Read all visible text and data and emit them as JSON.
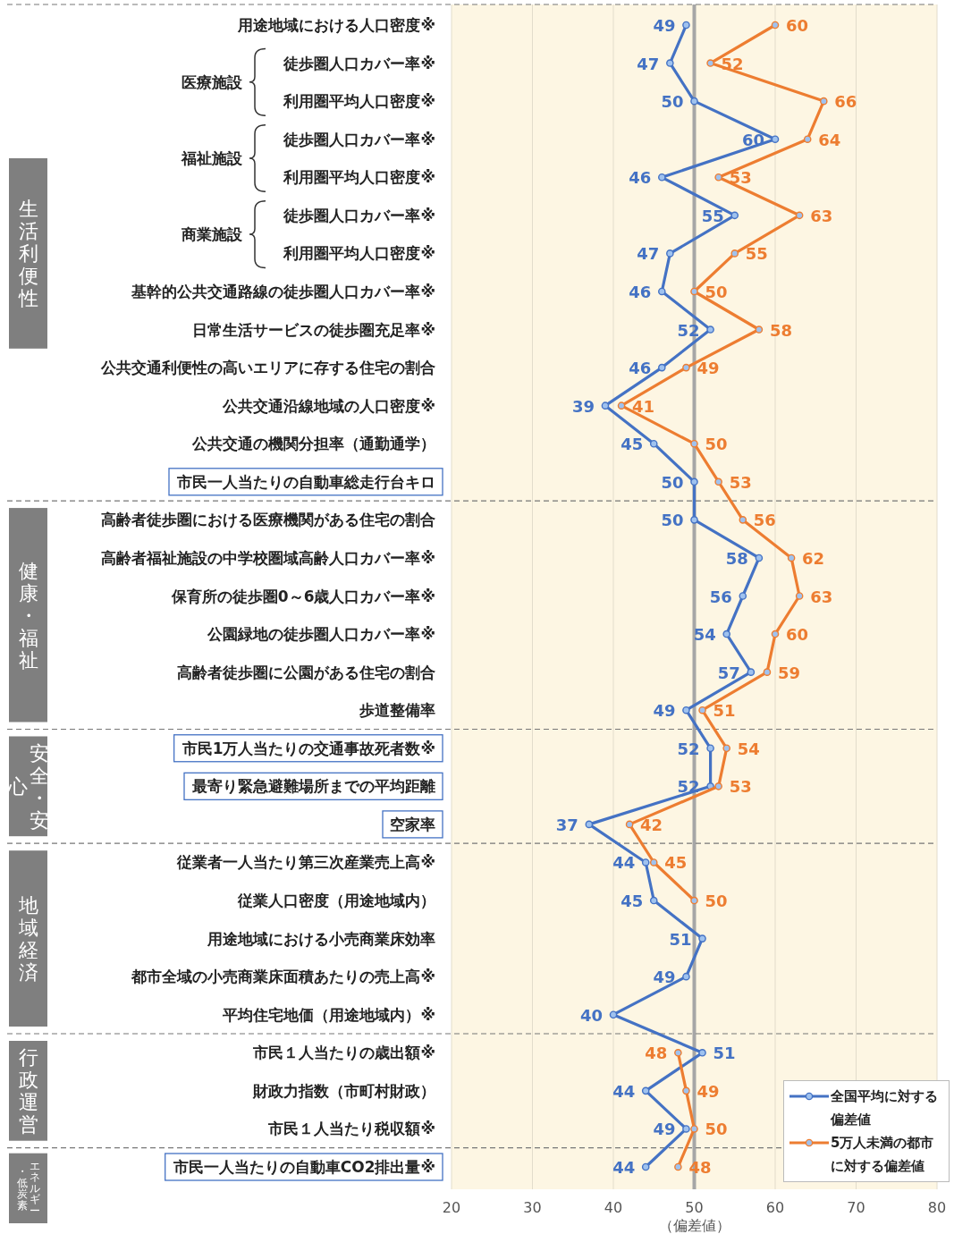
{
  "chart_data": {
    "type": "line",
    "orientation": "horizontal",
    "categories": [
      "用途地域における人口密度※",
      "徒歩圏人口カバー率※",
      "利用圏平均人口密度※",
      "徒歩圏人口カバー率※",
      "利用圏平均人口密度※",
      "徒歩圏人口カバー率※",
      "利用圏平均人口密度※",
      "基幹的公共交通路線の徒歩圏人口カバー率※",
      "日常生活サービスの徒歩圏充足率※",
      "公共交通利便性の高いエリアに存する住宅の割合",
      "公共交通沿線地域の人口密度※",
      "公共交通の機関分担率（通勤通学）",
      "市民一人当たりの自動車総走行台キロ",
      "高齢者徒歩圏における医療機関がある住宅の割合",
      "高齢者福祉施設の中学校圏域高齢人口カバー率※",
      "保育所の徒歩圏0～6歳人口カバー率※",
      "公園緑地の徒歩圏人口カバー率※",
      "高齢者徒歩圏に公園がある住宅の割合",
      "歩道整備率",
      "市民1万人当たりの交通事故死者数※",
      "最寄り緊急避難場所までの平均距離",
      "空家率",
      "従業者一人当たり第三次産業売上高※",
      "従業人口密度（用途地域内）",
      "用途地域における小売商業床効率",
      "都市全域の小売商業床面積あたりの売上高※",
      "平均住宅地価（用途地域内）※",
      "市民１人当たりの歳出額※",
      "財政力指数（市町村財政）",
      "市民１人当たり税収額※",
      "市民一人当たりの自動車CO2排出量※"
    ],
    "series": [
      {
        "name": "全国平均に対する偏差値",
        "color": "#4472c4",
        "values": [
          49,
          47,
          50,
          60,
          46,
          55,
          47,
          46,
          52,
          46,
          39,
          45,
          50,
          50,
          58,
          56,
          54,
          57,
          49,
          52,
          52,
          37,
          44,
          45,
          51,
          49,
          40,
          51,
          44,
          49,
          44
        ]
      },
      {
        "name": "5万人未満の都市に対する偏差値",
        "color": "#ed7d31",
        "values": [
          60,
          52,
          66,
          64,
          53,
          63,
          55,
          50,
          58,
          49,
          41,
          50,
          53,
          56,
          62,
          63,
          60,
          59,
          51,
          54,
          53,
          42,
          45,
          50,
          null,
          null,
          null,
          48,
          49,
          50,
          48
        ]
      }
    ],
    "xlim": [
      20,
      80
    ],
    "xticks": [
      20,
      30,
      40,
      50,
      60,
      70,
      80
    ],
    "xlabel": "（偏差値）",
    "grid": "x",
    "legend": "bottom right",
    "marker": "circle",
    "data_labels": true,
    "ref_lines": [
      {
        "axis": "x",
        "value": 50,
        "color": "#a6a6a6"
      }
    ],
    "annotations": [
      "生活利便性",
      "健康・福祉",
      "安全・安心",
      "地域経済",
      "行政運営",
      "エネルギー・低炭素",
      "医療施設",
      "福祉施設",
      "商業施設"
    ]
  }
}
